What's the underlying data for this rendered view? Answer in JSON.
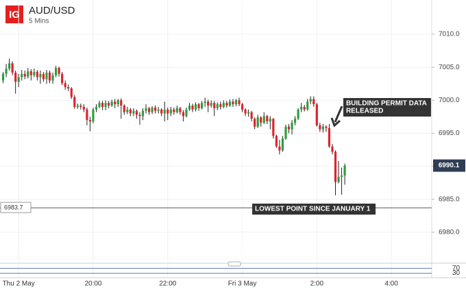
{
  "logo": "IG",
  "chart_data": {
    "type": "candlestick",
    "title": "AUD/USD",
    "subtitle": "5 Mins",
    "x": [
      "17:35",
      "17:40",
      "17:45",
      "17:50",
      "17:55",
      "18:00",
      "18:05",
      "18:10",
      "18:15",
      "18:20",
      "18:25",
      "18:30",
      "18:35",
      "18:40",
      "18:45",
      "18:50",
      "18:55",
      "19:00",
      "19:05",
      "19:10",
      "19:15",
      "19:20",
      "19:25",
      "19:30",
      "19:35",
      "19:40",
      "19:45",
      "19:50",
      "19:55",
      "20:00",
      "20:05",
      "20:10",
      "20:15",
      "20:20",
      "20:25",
      "20:30",
      "20:35",
      "20:40",
      "20:45",
      "20:50",
      "20:55",
      "21:00",
      "21:05",
      "21:10",
      "21:15",
      "21:20",
      "21:25",
      "21:30",
      "21:35",
      "21:40",
      "21:45",
      "21:50",
      "21:55",
      "22:00",
      "22:05",
      "22:10",
      "22:15",
      "22:20",
      "22:25",
      "22:30",
      "22:35",
      "22:40",
      "22:45",
      "22:50",
      "22:55",
      "23:00",
      "23:05",
      "23:10",
      "23:15",
      "23:20",
      "23:25",
      "23:30",
      "23:35",
      "23:40",
      "23:45",
      "23:50",
      "23:55",
      "00:00",
      "00:05",
      "00:10",
      "00:15",
      "00:20",
      "00:25",
      "00:30",
      "00:35",
      "00:40",
      "00:45",
      "00:50",
      "00:55",
      "01:00",
      "01:05",
      "01:10",
      "01:15",
      "01:20",
      "01:25",
      "01:30",
      "01:35",
      "01:40",
      "01:45",
      "01:50",
      "01:55",
      "02:00",
      "02:05",
      "02:10",
      "02:15",
      "02:20",
      "02:25",
      "02:30",
      "02:35",
      "02:40",
      "02:45"
    ],
    "open": [
      7003.0,
      7004.0,
      7004.8,
      7005.6,
      7004.2,
      7002.8,
      7003.5,
      7004.0,
      7003.6,
      7004.4,
      7003.8,
      7004.3,
      7003.5,
      7004.0,
      7003.2,
      7004.2,
      7003.0,
      7003.8,
      7004.9,
      7004.0,
      7002.6,
      7002.0,
      7001.8,
      7000.5,
      6999.0,
      6999.2,
      6999.0,
      6998.6,
      6997.0,
      6996.8,
      6998.6,
      6999.0,
      6999.6,
      6999.0,
      6999.6,
      6999.2,
      6999.8,
      6999.4,
      7000.0,
      6999.2,
      6998.2,
      6998.6,
      6998.0,
      6998.4,
      6997.8,
      6997.6,
      6998.4,
      6998.8,
      6998.2,
      6998.9,
      6998.4,
      6998.6,
      6998.0,
      6998.6,
      6998.0,
      6998.6,
      6998.2,
      6998.8,
      6998.2,
      6997.6,
      6998.6,
      6999.2,
      6998.6,
      6999.4,
      6998.8,
      6999.6,
      6999.8,
      6999.2,
      6999.6,
      6998.8,
      6999.4,
      6999.0,
      6999.6,
      6999.2,
      6999.8,
      6999.4,
      7000.0,
      6999.4,
      6998.6,
      6998.0,
      6998.2,
      6997.2,
      6996.0,
      6997.4,
      6996.6,
      6997.6,
      6996.8,
      6997.2,
      6994.6,
      6993.0,
      6992.4,
      6994.2,
      6996.0,
      6995.6,
      6996.6,
      6997.2,
      6998.6,
      6999.0,
      6998.6,
      6999.8,
      7000.2,
      6999.4,
      6996.2,
      6995.6,
      6996.0,
      6995.8,
      6993.0,
      6992.2,
      6987.6,
      6988.4,
      6988.6
    ],
    "high": [
      7004.3,
      7005.5,
      7006.3,
      7005.9,
      7004.5,
      7004.0,
      7004.6,
      7004.5,
      7004.9,
      7004.7,
      7004.8,
      7004.6,
      7004.5,
      7004.3,
      7004.6,
      7004.5,
      7004.2,
      7005.2,
      7005.1,
      7004.3,
      7003.0,
      7002.4,
      7002.0,
      7000.8,
      6999.5,
      6999.5,
      6999.4,
      6998.9,
      6997.5,
      6998.9,
      6999.4,
      6999.9,
      6999.9,
      7000.0,
      6999.9,
      7000.1,
      7000.2,
      7000.2,
      7000.3,
      6999.4,
      6999.0,
      6998.8,
      6998.8,
      6998.6,
      6998.2,
      6998.8,
      6999.4,
      6999.0,
      6999.1,
      6999.2,
      6999.0,
      6998.8,
      6999.8,
      6998.9,
      6999.0,
      6998.9,
      6999.2,
      6999.0,
      6998.5,
      6998.9,
      6999.6,
      6999.5,
      6999.7,
      6999.6,
      6999.9,
      7000.4,
      7000.1,
      7000.0,
      6999.9,
      6999.7,
      6999.8,
      7000.0,
      6999.9,
      7000.1,
      7000.2,
      7000.2,
      7000.4,
      6999.6,
      6998.8,
      6998.6,
      6998.4,
      6997.4,
      6997.8,
      6997.6,
      6998.2,
      6997.8,
      6997.6,
      6997.3,
      6994.8,
      6994.0,
      6994.6,
      6996.3,
      6996.4,
      6997.0,
      6997.6,
      6998.8,
      6999.6,
      6999.3,
      7000.2,
      7000.6,
      7000.6,
      6999.6,
      6996.6,
      6996.4,
      6996.2,
      6996.4,
      6993.4,
      6992.4,
      6990.8,
      6989.8,
      6990.4
    ],
    "low": [
      7002.6,
      7003.5,
      7004.5,
      7003.8,
      7001.0,
      7002.0,
      7003.0,
      7003.2,
      7003.3,
      7003.0,
      7003.5,
      7003.0,
      7002.5,
      7002.8,
      7002.5,
      7002.6,
      7002.5,
      7003.5,
      7003.6,
      7002.3,
      7001.6,
      7001.4,
      7000.2,
      6998.7,
      6998.7,
      6998.6,
      6998.2,
      6996.2,
      6995.3,
      6996.5,
      6998.2,
      6998.8,
      6998.5,
      6998.5,
      6998.8,
      6999.0,
      6998.8,
      6999.0,
      6997.2,
      6997.8,
      6997.9,
      6997.6,
      6997.6,
      6997.2,
      6996.3,
      6997.0,
      6998.0,
      6997.8,
      6997.9,
      6998.0,
      6998.0,
      6997.6,
      6996.8,
      6997.0,
      6997.6,
      6997.8,
      6998.0,
      6997.8,
      6996.8,
      6997.4,
      6998.4,
      6998.2,
      6998.3,
      6998.4,
      6998.6,
      6999.0,
      6998.2,
      6998.9,
      6997.6,
      6998.5,
      6998.6,
      6998.8,
      6998.9,
      6999.0,
      6999.0,
      6999.1,
      6999.1,
      6998.2,
      6997.6,
      6997.5,
      6996.8,
      6995.6,
      6995.8,
      6996.0,
      6996.4,
      6996.4,
      6995.6,
      6994.2,
      6992.8,
      6991.8,
      6992.2,
      6994.0,
      6995.0,
      6994.8,
      6996.2,
      6997.0,
      6998.2,
      6998.3,
      6998.4,
      6999.4,
      6999.0,
      6996.0,
      6995.2,
      6995.1,
      6995.2,
      6992.8,
      6991.8,
      6985.6,
      6987.4,
      6985.7,
      6987.2
    ],
    "close": [
      7004.0,
      7004.8,
      7005.6,
      7004.2,
      7002.8,
      7003.5,
      7004.0,
      7003.6,
      7004.4,
      7003.8,
      7004.3,
      7003.5,
      7004.0,
      7003.2,
      7004.2,
      7003.0,
      7003.8,
      7004.9,
      7004.0,
      7002.6,
      7002.0,
      7001.8,
      7000.5,
      6999.0,
      6999.2,
      6999.0,
      6998.6,
      6997.0,
      6996.8,
      6998.6,
      6999.0,
      6999.6,
      6999.0,
      6999.6,
      6999.2,
      6999.8,
      6999.4,
      7000.0,
      6999.2,
      6998.2,
      6998.6,
      6998.0,
      6998.4,
      6997.8,
      6997.6,
      6998.4,
      6998.8,
      6998.2,
      6998.9,
      6998.4,
      6998.6,
      6998.0,
      6998.6,
      6998.0,
      6998.6,
      6998.2,
      6998.8,
      6998.2,
      6997.6,
      6998.6,
      6999.2,
      6998.6,
      6999.4,
      6998.8,
      6999.6,
      6999.8,
      6999.2,
      6999.6,
      6998.8,
      6999.4,
      6999.0,
      6999.6,
      6999.2,
      6999.8,
      6999.4,
      7000.0,
      6999.4,
      6998.6,
      6998.0,
      6998.2,
      6997.2,
      6996.0,
      6997.4,
      6996.6,
      6997.6,
      6996.8,
      6997.2,
      6994.6,
      6993.0,
      6992.4,
      6994.2,
      6996.0,
      6995.6,
      6996.6,
      6997.2,
      6998.6,
      6999.0,
      6998.6,
      6999.8,
      7000.2,
      6999.4,
      6996.2,
      6995.6,
      6996.0,
      6995.8,
      6993.0,
      6992.2,
      6987.6,
      6988.4,
      6988.6,
      6990.1
    ],
    "up_color": "#2e9e3e",
    "down_color": "#e0222c",
    "last_price": 6990.1,
    "reference_line": 6983.7,
    "xlim": [
      "17:30",
      "05:05"
    ],
    "xticks": [
      {
        "value": "18:00",
        "label": "Thu 2 May"
      },
      {
        "value": "20:00",
        "label": "20:00"
      },
      {
        "value": "22:00",
        "label": "22:00"
      },
      {
        "value": "00:00",
        "label": "Fri 3 May"
      },
      {
        "value": "02:00",
        "label": "2:00"
      },
      {
        "value": "04:00",
        "label": "4:00"
      }
    ],
    "ylim": [
      6975.4,
      7015.2
    ],
    "yticks": [
      {
        "value": 6980,
        "label": "6980.0"
      },
      {
        "value": 6985,
        "label": "6985.0"
      },
      {
        "value": 6990,
        "label": "6990.0"
      },
      {
        "value": 6995,
        "label": "6995.0"
      },
      {
        "value": 7000,
        "label": "7000.0"
      },
      {
        "value": 7005,
        "label": "7005.0"
      },
      {
        "value": 7010,
        "label": "7010.0"
      }
    ],
    "grid": true,
    "annotations": [
      {
        "lines": [
          "BUILDING PERMIT DATA",
          "RELEASED"
        ],
        "x": "02:25"
      },
      {
        "lines": [
          "LOWEST POINT SINCE JANUARY 1"
        ],
        "x": "02:35"
      }
    ],
    "indicator": {
      "ylim": [
        0,
        100
      ],
      "yticks": [
        30,
        70
      ]
    }
  }
}
